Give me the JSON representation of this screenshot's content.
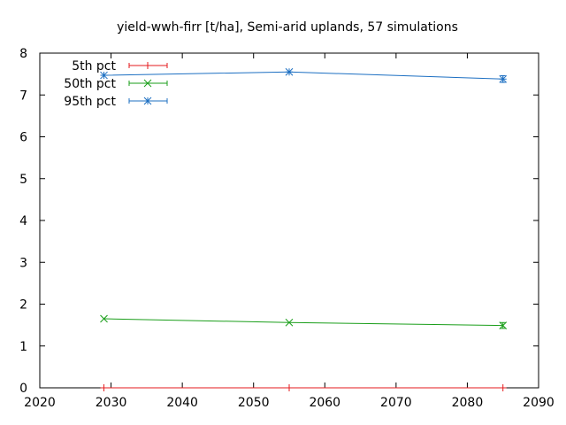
{
  "chart_data": {
    "type": "line",
    "title": "yield-wwh-firr [t/ha], Semi-arid uplands, 57 simulations",
    "xlabel": "",
    "ylabel": "",
    "xlim": [
      2020,
      2090
    ],
    "ylim": [
      0,
      8
    ],
    "xticks": [
      2020,
      2030,
      2040,
      2050,
      2060,
      2070,
      2080,
      2090
    ],
    "yticks": [
      0,
      1,
      2,
      3,
      4,
      5,
      6,
      7,
      8
    ],
    "x": [
      2029,
      2055,
      2085
    ],
    "grid": false,
    "legend_position": "top-left",
    "series": [
      {
        "name": "5th pct",
        "color": "#e41a1c",
        "marker": "plus",
        "values": [
          0.0,
          0.0,
          0.0
        ],
        "err": [
          0.0,
          0.0,
          0.0
        ]
      },
      {
        "name": "50th pct",
        "color": "#1a9e1a",
        "marker": "cross",
        "values": [
          1.65,
          1.56,
          1.49
        ],
        "err": [
          0.0,
          0.0,
          0.07
        ]
      },
      {
        "name": "95th pct",
        "color": "#1c6fc2",
        "marker": "asterisk",
        "values": [
          7.47,
          7.55,
          7.38
        ],
        "err": [
          0.0,
          0.0,
          0.08
        ]
      }
    ]
  }
}
